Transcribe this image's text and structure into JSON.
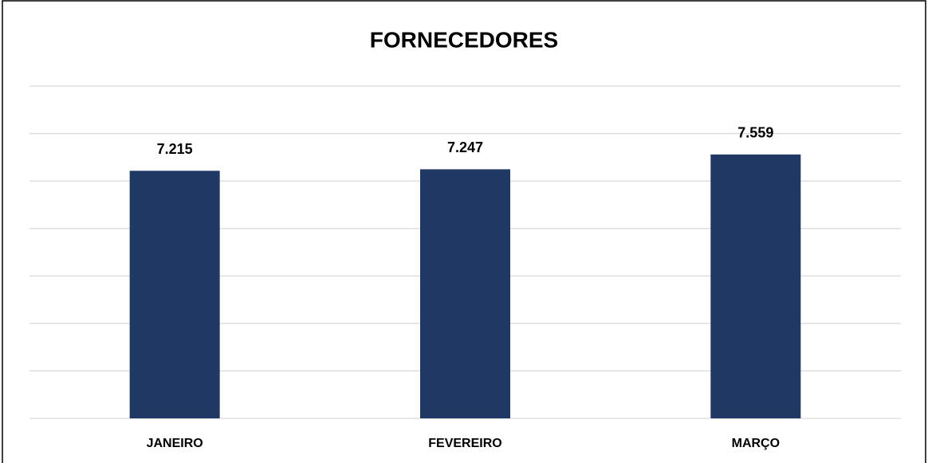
{
  "chart_data": {
    "type": "bar",
    "title": "FORNECEDORES",
    "categories": [
      "JANEIRO",
      "FEVEREIRO",
      "MARÇO"
    ],
    "values": [
      7215,
      7247,
      7559
    ],
    "value_labels": [
      "7.215",
      "7.247",
      "7.559"
    ],
    "color": "#203864",
    "ylim": [
      2000,
      9000
    ],
    "yticks": [
      2000,
      3000,
      4000,
      5000,
      6000,
      7000,
      8000,
      9000
    ],
    "grid": true
  }
}
